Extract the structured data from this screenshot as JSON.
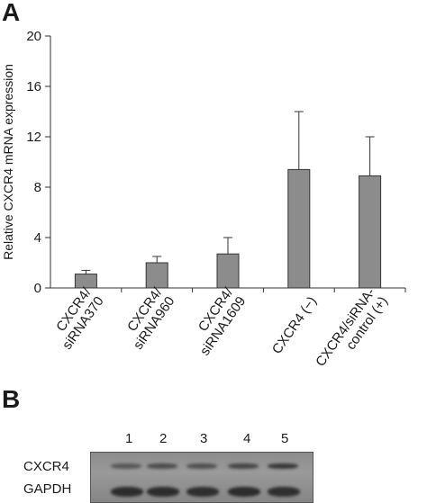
{
  "panel_a_label": "A",
  "panel_b_label": "B",
  "chart_data": {
    "type": "bar",
    "ylabel": "Relative CXCR4 mRNA expression",
    "ylim": [
      0,
      20
    ],
    "yticks": [
      0,
      4,
      8,
      12,
      16,
      20
    ],
    "categories": [
      [
        "CXCR4/",
        "siRNA370"
      ],
      [
        "CXCR4/",
        "siRNA960"
      ],
      [
        "CXCR4/",
        "siRNA1609"
      ],
      [
        "CXCR4 (−)"
      ],
      [
        "CXCR4/siRNA-",
        "control (+)"
      ]
    ],
    "values": [
      1.1,
      2.0,
      2.7,
      9.4,
      8.9
    ],
    "errors": [
      0.3,
      0.5,
      1.3,
      4.6,
      3.1
    ],
    "bar_color": "#8c8c8c"
  },
  "blot": {
    "lanes": [
      "1",
      "2",
      "3",
      "4",
      "5"
    ],
    "rows": [
      "CXCR4",
      "GAPDH"
    ],
    "cxcr4_intensity": [
      0.35,
      0.5,
      0.45,
      0.6,
      0.8
    ],
    "gapdh_intensity": [
      0.95,
      0.95,
      0.9,
      0.95,
      0.9
    ]
  }
}
